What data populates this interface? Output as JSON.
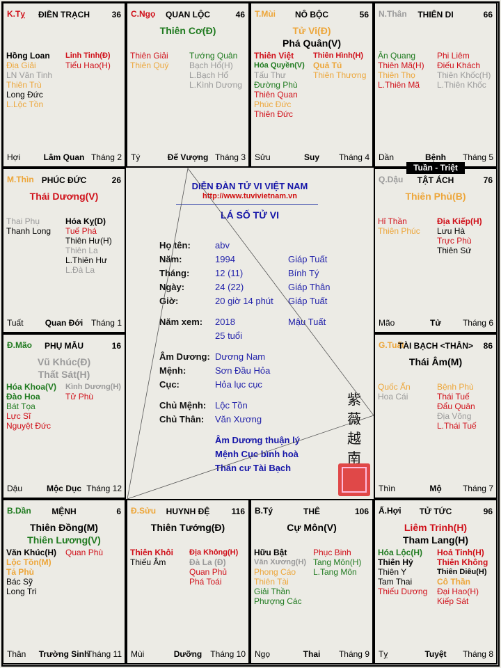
{
  "colors": {
    "r": "#d0101a",
    "o": "#eda63a",
    "g": "#1f7a1f",
    "k": "#000000",
    "s": "#9a9a9a",
    "blue": "#1515a8"
  },
  "palaces": [
    {
      "branch": "K.Tỵ",
      "bc": "r",
      "name": "ĐIỀN TRẠCH",
      "num": "36",
      "mains": [],
      "left": [
        [
          "Hồng Loan",
          "k",
          1
        ],
        [
          "Địa Giải",
          "o",
          0
        ],
        [
          "LN Văn Tinh",
          "s",
          0
        ],
        [
          "Thiên Trù",
          "o",
          0
        ],
        [
          "Long Đức",
          "k",
          0
        ],
        [
          "L.Lộc Tồn",
          "o",
          0
        ]
      ],
      "right": [
        [
          "Linh Tinh(Đ)",
          "r",
          1
        ],
        [
          "Tiểu Hao(H)",
          "r",
          0
        ]
      ],
      "footer": [
        "Hợi",
        "Lâm Quan",
        "Tháng 2"
      ]
    },
    {
      "branch": "C.Ngọ",
      "bc": "r",
      "name": "QUAN LỘC",
      "num": "46",
      "mains": [
        [
          "Thiên Cơ(Đ)",
          "g"
        ]
      ],
      "left": [
        [
          "Thiên Giải",
          "r",
          0
        ],
        [
          "Thiên Quý",
          "o",
          0
        ]
      ],
      "right": [
        [
          "Tướng Quân",
          "g",
          0
        ],
        [
          "Bạch Hổ(H)",
          "s",
          0
        ],
        [
          "L.Bạch Hổ",
          "s",
          0
        ],
        [
          "L.Kình Dương",
          "s",
          0
        ]
      ],
      "footer": [
        "Tý",
        "Đế Vượng",
        "Tháng 3"
      ]
    },
    {
      "branch": "T.Mùi",
      "bc": "o",
      "name": "NÔ BỘC",
      "num": "56",
      "mains": [
        [
          "Tử Vi(Đ)",
          "o"
        ],
        [
          "Phá Quân(V)",
          "k"
        ]
      ],
      "left": [
        [
          "Thiên Việt",
          "r",
          1
        ],
        [
          "Hóa Quyền(V)",
          "g",
          1
        ],
        [
          "Tấu Thư",
          "s",
          0
        ],
        [
          "Đường Phù",
          "g",
          0
        ],
        [
          "Thiên Quan",
          "r",
          0
        ],
        [
          "Phúc Đức",
          "o",
          0
        ],
        [
          "Thiên Đức",
          "r",
          0
        ]
      ],
      "right": [
        [
          "Thiên Hình(H)",
          "r",
          1
        ],
        [
          "Quả Tú",
          "o",
          1
        ],
        [
          "Thiên Thương",
          "o",
          0
        ]
      ],
      "footer": [
        "Sửu",
        "Suy",
        "Tháng 4"
      ]
    },
    {
      "branch": "N.Thân",
      "bc": "s",
      "name": "THIÊN DI",
      "num": "66",
      "mains": [],
      "left": [
        [
          "Ân Quang",
          "g",
          0
        ],
        [
          "Thiên Mã(H)",
          "r",
          0
        ],
        [
          "Thiên Thọ",
          "o",
          0
        ],
        [
          "L.Thiên Mã",
          "r",
          0
        ]
      ],
      "right": [
        [
          "Phi Liêm",
          "r",
          0
        ],
        [
          "Điếu Khách",
          "r",
          0
        ],
        [
          "Thiên Khốc(H)",
          "s",
          0
        ],
        [
          "L.Thiên Khốc",
          "s",
          0
        ]
      ],
      "footer": [
        "Dần",
        "Bệnh",
        "Tháng 5"
      ]
    },
    {
      "branch": "M.Thìn",
      "bc": "o",
      "name": "PHÚC ĐỨC",
      "num": "26",
      "mains": [
        [
          "Thái Dương(V)",
          "r"
        ]
      ],
      "left": [
        [
          "Thai Phụ",
          "s",
          0
        ],
        [
          "Thanh Long",
          "k",
          0
        ]
      ],
      "right": [
        [
          "Hóa Kỵ(D)",
          "k",
          1
        ],
        [
          "Tuế Phá",
          "r",
          0
        ],
        [
          "Thiên Hư(H)",
          "k",
          0
        ],
        [
          "Thiên La",
          "s",
          0
        ],
        [
          "L.Thiên Hư",
          "k",
          0
        ],
        [
          "L.Đà La",
          "s",
          0
        ]
      ],
      "footer": [
        "Tuất",
        "Quan Đới",
        "Tháng 1"
      ]
    },
    {
      "branch": "Q.Dậu",
      "bc": "s",
      "name": "TẬT ÁCH",
      "num": "76",
      "mains": [
        [
          "Thiên Phủ(B)",
          "o"
        ]
      ],
      "left": [
        [
          "Hỉ Thần",
          "r",
          0
        ],
        [
          "Thiên Phúc",
          "o",
          0
        ]
      ],
      "right": [
        [
          "Địa Kiếp(H)",
          "r",
          1
        ],
        [
          "Lưu Hà",
          "k",
          0
        ],
        [
          "Trực Phù",
          "r",
          0
        ],
        [
          "Thiên Sứ",
          "k",
          0
        ]
      ],
      "footer": [
        "Mão",
        "Tử",
        "Tháng 6"
      ]
    },
    {
      "branch": "Đ.Mão",
      "bc": "g",
      "name": "PHỤ MẪU",
      "num": "16",
      "mains": [
        [
          "Vũ Khúc(Đ)",
          "s"
        ],
        [
          "Thất Sát(H)",
          "s"
        ]
      ],
      "left": [
        [
          "Hóa Khoa(V)",
          "g",
          1
        ],
        [
          "Đào Hoa",
          "g",
          1
        ],
        [
          "Bát Tọa",
          "g",
          0
        ],
        [
          "Lực Sĩ",
          "r",
          0
        ],
        [
          "Nguyệt Đức",
          "r",
          0
        ]
      ],
      "right": [
        [
          "Kình Dương(H)",
          "s",
          1
        ],
        [
          "Tử Phù",
          "r",
          0
        ]
      ],
      "footer": [
        "Dậu",
        "Mộc Dục",
        "Tháng 12"
      ]
    },
    {
      "branch": "G.Tuất",
      "bc": "o",
      "name": "TÀI BẠCH <THÂN>",
      "num": "86",
      "mains": [
        [
          "Thái Âm(M)",
          "k"
        ]
      ],
      "left": [
        [
          "Quốc Ấn",
          "o",
          0
        ],
        [
          "Hoa Cái",
          "s",
          0
        ]
      ],
      "right": [
        [
          "Bệnh Phù",
          "o",
          0
        ],
        [
          "Thái Tuế",
          "r",
          0
        ],
        [
          "Đẩu Quân",
          "r",
          0
        ],
        [
          "Địa Võng",
          "s",
          0
        ],
        [
          "L.Thái Tuế",
          "r",
          0
        ]
      ],
      "footer": [
        "Thìn",
        "Mộ",
        "Tháng 7"
      ]
    },
    {
      "branch": "B.Dần",
      "bc": "g",
      "name": "MỆNH",
      "num": "6",
      "mains": [
        [
          "Thiên Đồng(M)",
          "k"
        ],
        [
          "Thiên Lương(V)",
          "g"
        ]
      ],
      "left": [
        [
          "Văn Khúc(H)",
          "k",
          1
        ],
        [
          "Lộc Tồn(M)",
          "o",
          1
        ],
        [
          "Tả Phù",
          "o",
          1
        ],
        [
          "Bác Sỹ",
          "k",
          0
        ],
        [
          "Long Trì",
          "k",
          0
        ]
      ],
      "right": [
        [
          "Quan Phù",
          "r",
          0
        ]
      ],
      "footer": [
        "Thân",
        "Trường Sinh",
        "Tháng 11"
      ]
    },
    {
      "branch": "Đ.Sửu",
      "bc": "o",
      "name": "HUYNH ĐỆ",
      "num": "116",
      "mains": [
        [
          "Thiên Tướng(Đ)",
          "k"
        ]
      ],
      "left": [
        [
          "Thiên Khôi",
          "r",
          1
        ],
        [
          "Thiếu Âm",
          "k",
          0
        ]
      ],
      "right": [
        [
          "Địa Không(H)",
          "r",
          1
        ],
        [
          "Đà La (Đ)",
          "s",
          1
        ],
        [
          "Quan Phủ",
          "r",
          0
        ],
        [
          "Phá Toái",
          "r",
          0
        ]
      ],
      "footer": [
        "Mùi",
        "Dưỡng",
        "Tháng 10"
      ]
    },
    {
      "branch": "B.Tý",
      "bc": "k",
      "name": "THÊ",
      "num": "106",
      "mains": [
        [
          "Cự Môn(V)",
          "k"
        ]
      ],
      "left": [
        [
          "Hữu Bật",
          "k",
          1
        ],
        [
          "Văn Xương(H)",
          "s",
          1
        ],
        [
          "Phong Cáo",
          "o",
          0
        ],
        [
          "Thiên Tài",
          "o",
          0
        ],
        [
          "Giải Thần",
          "g",
          0
        ],
        [
          "Phượng Các",
          "g",
          0
        ]
      ],
      "right": [
        [
          "Phục Binh",
          "r",
          0
        ],
        [
          "Tang Môn(H)",
          "g",
          0
        ],
        [
          "L.Tang Môn",
          "g",
          0
        ]
      ],
      "footer": [
        "Ngọ",
        "Thai",
        "Tháng 9"
      ]
    },
    {
      "branch": "Ấ.Hợi",
      "bc": "k",
      "name": "TỬ TỨC",
      "num": "96",
      "mains": [
        [
          "Liêm Trinh(H)",
          "r"
        ],
        [
          "Tham Lang(H)",
          "k"
        ]
      ],
      "left": [
        [
          "Hóa Lộc(H)",
          "g",
          1
        ],
        [
          "Thiên Hỷ",
          "k",
          1
        ],
        [
          "Thiên Y",
          "k",
          0
        ],
        [
          "Tam Thai",
          "k",
          0
        ],
        [
          "Thiếu Dương",
          "r",
          0
        ]
      ],
      "right": [
        [
          "Hoả Tinh(H)",
          "r",
          1
        ],
        [
          "Thiên Không",
          "r",
          1
        ],
        [
          "Thiên Diêu(H)",
          "k",
          1
        ],
        [
          "Cô Thần",
          "o",
          1
        ],
        [
          "Đại Hao(H)",
          "r",
          0
        ],
        [
          "Kiếp Sát",
          "r",
          0
        ]
      ],
      "footer": [
        "Tỵ",
        "Tuyệt",
        "Tháng 8"
      ]
    }
  ],
  "tuan_triet": "Tuần - Triệt",
  "center": {
    "title": "DIỄN ĐÀN TỬ VI VIỆT NAM",
    "url": "http://www.tuvivietnam.vn",
    "subtitle": "LÁ SỐ TỬ VI",
    "rows": [
      {
        "label": "Họ tên:",
        "value": "abv",
        "extra": ""
      },
      {
        "label": "Năm:",
        "value": "1994",
        "extra": "Giáp Tuất"
      },
      {
        "label": "Tháng:",
        "value": "12 (11)",
        "extra": "Bính Tý"
      },
      {
        "label": "Ngày:",
        "value": "24 (22)",
        "extra": "Giáp Thân"
      },
      {
        "label": "Giờ:",
        "value": "20 giờ 14 phút",
        "extra": "Giáp Tuất"
      },
      {
        "label": "Năm xem:",
        "value": "2018",
        "extra": "Mậu Tuất"
      },
      {
        "label": "",
        "value": "25 tuổi",
        "extra": ""
      },
      {
        "label": "Âm Dương:",
        "value": "Dương Nam",
        "extra": ""
      },
      {
        "label": "Mệnh:",
        "value": "Sơn Đầu Hỏa",
        "extra": ""
      },
      {
        "label": "Cục:",
        "value": "Hỏa lục cục",
        "extra": ""
      },
      {
        "label": "Chủ Mệnh:",
        "value": "Lộc Tồn",
        "extra": ""
      },
      {
        "label": "Chủ Thân:",
        "value": "Văn Xương",
        "extra": ""
      }
    ],
    "notes": [
      "Âm Dương thuận lý",
      "Mệnh Cục bình hoà",
      "Thân cư Tài Bạch"
    ],
    "vertical_text": [
      "紫",
      "薇",
      "越",
      "南"
    ],
    "seal_text": "red seal"
  }
}
